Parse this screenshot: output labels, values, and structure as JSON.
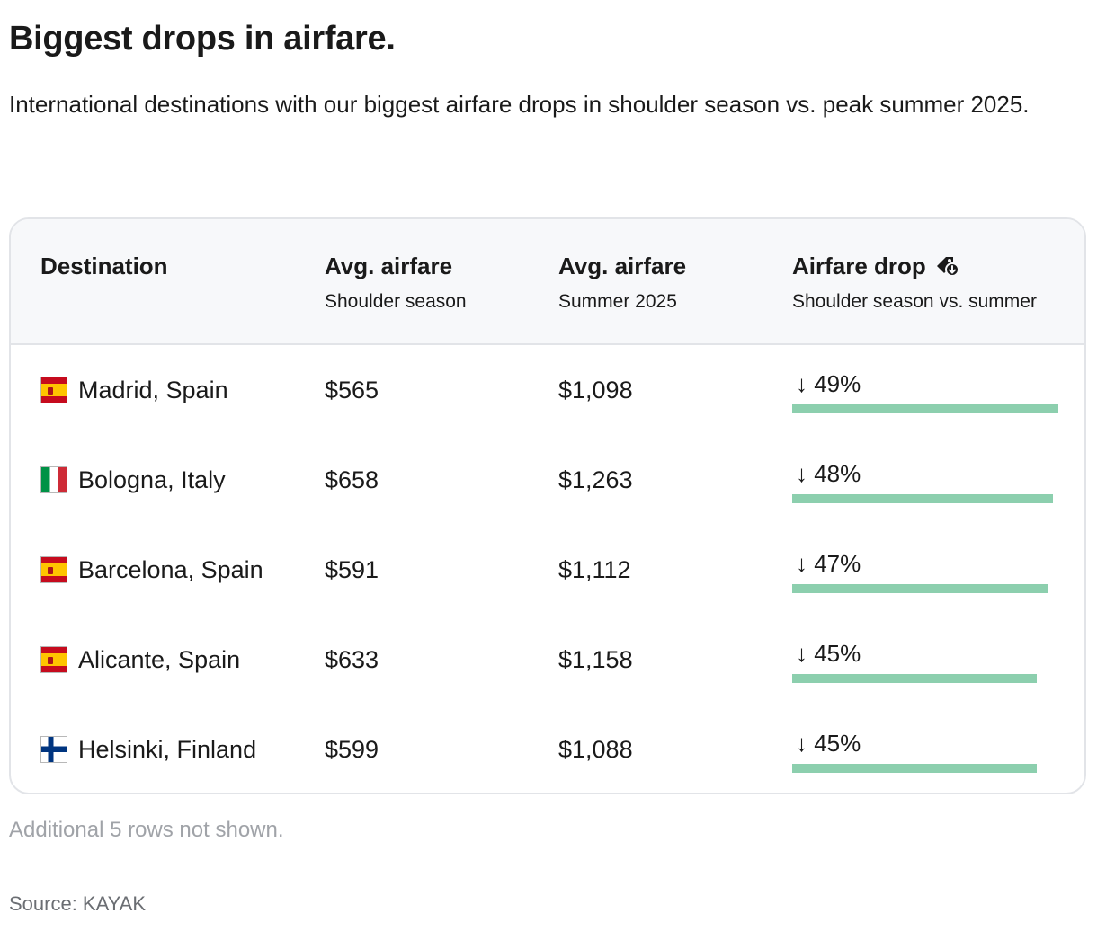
{
  "title": "Biggest drops in airfare.",
  "subtitle": "International destinations with our biggest airfare drops in shoulder season vs. peak summer 2025.",
  "table": {
    "headers": [
      {
        "title": "Destination",
        "sub": ""
      },
      {
        "title": "Avg. airfare",
        "sub": "Shoulder season"
      },
      {
        "title": "Avg. airfare",
        "sub": "Summer 2025"
      },
      {
        "title": "Airfare drop",
        "sub": "Shoulder season vs. summer",
        "icon": "price-tag-down-icon"
      }
    ],
    "rows": [
      {
        "flag": "spain-flag-icon",
        "destination": "Madrid, Spain",
        "shoulder": "$565",
        "summer": "$1,098",
        "drop_label": "↓ 49%",
        "drop_pct": 49
      },
      {
        "flag": "italy-flag-icon",
        "destination": "Bologna, Italy",
        "shoulder": "$658",
        "summer": "$1,263",
        "drop_label": "↓ 48%",
        "drop_pct": 48
      },
      {
        "flag": "spain-flag-icon",
        "destination": "Barcelona, Spain",
        "shoulder": "$591",
        "summer": "$1,112",
        "drop_label": "↓ 47%",
        "drop_pct": 47
      },
      {
        "flag": "spain-flag-icon",
        "destination": "Alicante, Spain",
        "shoulder": "$633",
        "summer": "$1,158",
        "drop_label": "↓ 45%",
        "drop_pct": 45
      },
      {
        "flag": "finland-flag-icon",
        "destination": "Helsinki, Finland",
        "shoulder": "$599",
        "summer": "$1,088",
        "drop_label": "↓ 45%",
        "drop_pct": 45
      }
    ],
    "bar_color": "#8ccfae",
    "bar_max_pct": 49
  },
  "footnote": "Additional 5 rows not shown.",
  "source": "Source: KAYAK"
}
